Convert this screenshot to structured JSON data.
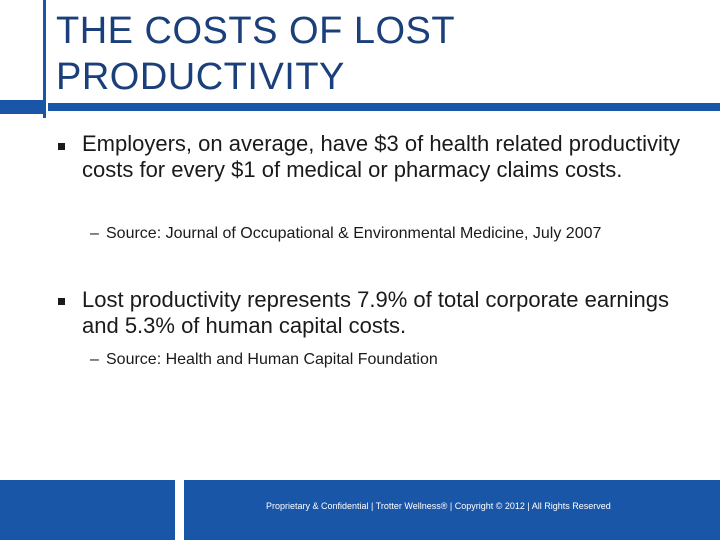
{
  "slide": {
    "title": "THE COSTS OF LOST PRODUCTIVITY",
    "points": [
      {
        "text": "Employers, on average, have $3 of health related productivity costs for every $1 of medical or pharmacy claims costs.",
        "source": "Source: Journal of Occupational & Environmental Medicine, July 2007"
      },
      {
        "text": "Lost productivity represents 7.9% of total corporate earnings and 5.3% of human capital costs.",
        "source": "Source: Health and Human Capital Foundation"
      }
    ],
    "footer": "Proprietary & Confidential | Trotter Wellness® | Copyright © 2012 | All Rights Reserved"
  },
  "colors": {
    "accent": "#1a56a8",
    "title": "#1a3f7a",
    "text": "#1a1a1a"
  }
}
